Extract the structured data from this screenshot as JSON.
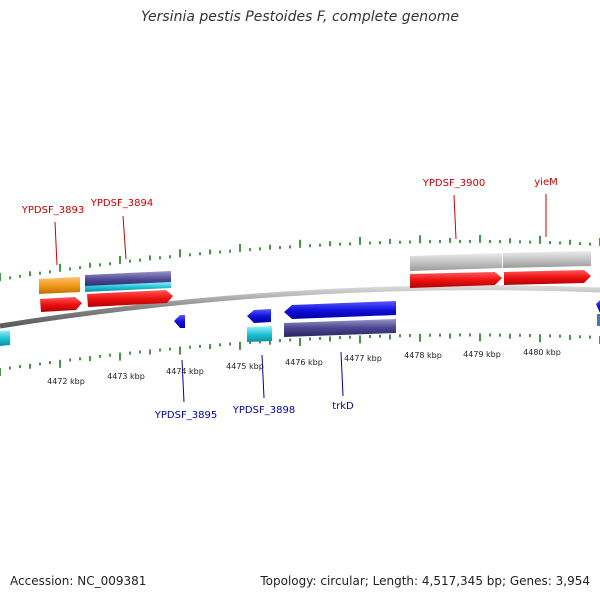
{
  "title": "Yersinia pestis Pestoides F, complete genome",
  "footer": {
    "accession": "Accession: NC_009381",
    "stats": "Topology: circular; Length: 4,517,345 bp; Genes: 3,954"
  },
  "scale_labels": [
    "4472 kbp",
    "4473 kbp",
    "4474 kbp",
    "4475 kbp",
    "4476 kbp",
    "4477 kbp",
    "4478 kbp",
    "4479 kbp",
    "4480 kbp"
  ],
  "gene_labels": {
    "forward": [
      "YPDSF_3893",
      "YPDSF_3894",
      "YPDSF_3900",
      "yieM"
    ],
    "reverse": [
      "YPDSF_3895",
      "YPDSF_3898",
      "trkD"
    ]
  },
  "colors": {
    "forward_label": "#cc0000",
    "reverse_label": "#0000aa",
    "cds_forward": "#ee1111",
    "cds_reverse": "#1111dd",
    "orange": "#f49a1a",
    "cyan": "#22c4d8",
    "purple": "#4a4590",
    "gray": "#c4c4c4",
    "tick": "#1a7a1a",
    "backbone": "#888888"
  }
}
